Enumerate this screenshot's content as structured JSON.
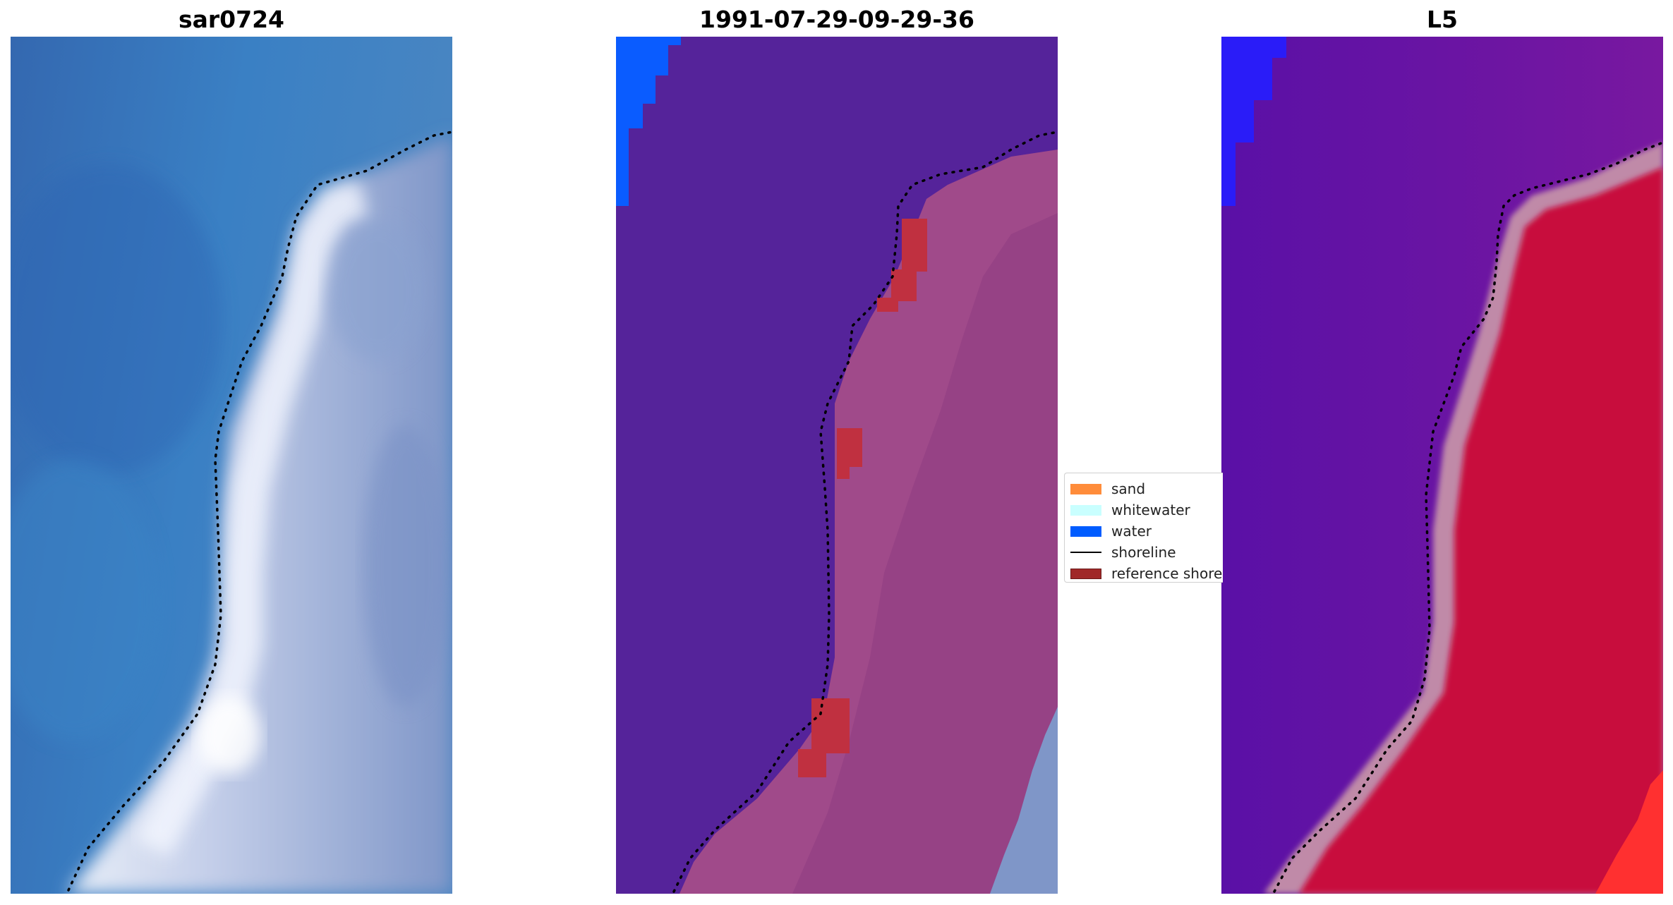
{
  "panels": [
    {
      "title": "sar0724"
    },
    {
      "title": "1991-07-29-09-29-36"
    },
    {
      "title": "L5"
    }
  ],
  "legend": {
    "items": [
      {
        "label": "sand",
        "color": "#ff8c3a",
        "kind": "patch"
      },
      {
        "label": "whitewater",
        "color": "#c9ffff",
        "kind": "patch"
      },
      {
        "label": "water",
        "color": "#005cff",
        "kind": "patch"
      },
      {
        "label": "shoreline",
        "color": "#000000",
        "kind": "line"
      },
      {
        "label": "reference shoreline",
        "color": "#a02828",
        "kind": "patch"
      }
    ]
  },
  "colors": {
    "rgb_water": "#3a7cc0",
    "rgb_land": "#b8c4e2",
    "class_water": "#55239a",
    "class_land": "#a04a8a",
    "class_water_blue": "#0a5cff",
    "class_reference": "#c03040",
    "index_water": "#6a18a8",
    "index_land": "#c80a3c"
  }
}
